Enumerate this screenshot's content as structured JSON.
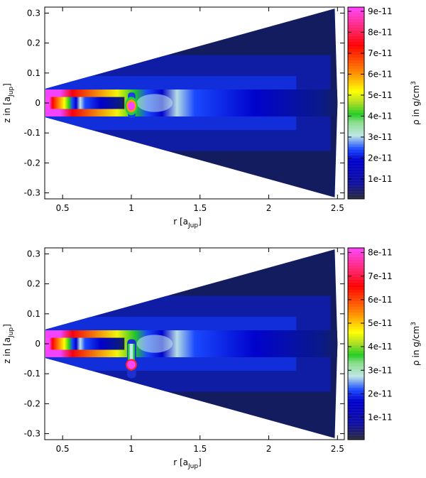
{
  "chart_data": [
    {
      "type": "heatmap",
      "xlabel": "r [a",
      "xlabel_sub": "Jup",
      "xlabel_close": "]",
      "ylabel": "z in [a",
      "ylabel_sub": "Jup",
      "ylabel_close": "]",
      "colorbar_label": "ρ in g/cm",
      "colorbar_label_sup": "3",
      "xlim": [
        0.37,
        2.55
      ],
      "ylim": [
        -0.32,
        0.32
      ],
      "x_ticks": [
        {
          "v": 0.5,
          "label": "0.5"
        },
        {
          "v": 1.0,
          "label": "1"
        },
        {
          "v": 1.5,
          "label": "1.5"
        },
        {
          "v": 2.0,
          "label": "2"
        },
        {
          "v": 2.5,
          "label": "2.5"
        }
      ],
      "y_ticks": [
        {
          "v": 0.3,
          "label": "0.3"
        },
        {
          "v": 0.2,
          "label": "0.2"
        },
        {
          "v": 0.1,
          "label": "0.1"
        },
        {
          "v": 0.0,
          "label": "0"
        },
        {
          "v": -0.1,
          "label": "-0.1"
        },
        {
          "v": -0.2,
          "label": "-0.2"
        },
        {
          "v": -0.3,
          "label": "-0.3"
        }
      ],
      "colorbar_range": [
        5e-13,
        9.2e-11
      ],
      "colorbar_ticks": [
        {
          "v": 1e-11,
          "label": "1e-11"
        },
        {
          "v": 2e-11,
          "label": "2e-11"
        },
        {
          "v": 3e-11,
          "label": "3e-11"
        },
        {
          "v": 4e-11,
          "label": "4e-11"
        },
        {
          "v": 5e-11,
          "label": "5e-11"
        },
        {
          "v": 6e-11,
          "label": "6e-11"
        },
        {
          "v": 7e-11,
          "label": "7e-11"
        },
        {
          "v": 8e-11,
          "label": "8e-11"
        },
        {
          "v": 9e-11,
          "label": "9e-11"
        }
      ],
      "wedge_opening_angle_rad": 0.127,
      "colormap": [
        "#2a2a3a",
        "#0000cc",
        "#1a4aff",
        "#bfe6e6",
        "#22cc22",
        "#ffff00",
        "#ff8800",
        "#ff0000",
        "#ff44ff"
      ],
      "planet": {
        "r": 1.0,
        "z": -0.01
      }
    },
    {
      "type": "heatmap",
      "xlabel": "r [a",
      "xlabel_sub": "Jup",
      "xlabel_close": "]",
      "ylabel": "z in [a",
      "ylabel_sub": "Jup",
      "ylabel_close": "]",
      "colorbar_label": "ρ in g/cm",
      "colorbar_label_sup": "3",
      "xlim": [
        0.37,
        2.55
      ],
      "ylim": [
        -0.32,
        0.32
      ],
      "x_ticks": [
        {
          "v": 0.5,
          "label": "0.5"
        },
        {
          "v": 1.0,
          "label": "1"
        },
        {
          "v": 1.5,
          "label": "1.5"
        },
        {
          "v": 2.0,
          "label": "2"
        },
        {
          "v": 2.5,
          "label": "2.5"
        }
      ],
      "y_ticks": [
        {
          "v": 0.3,
          "label": "0.3"
        },
        {
          "v": 0.2,
          "label": "0.2"
        },
        {
          "v": 0.1,
          "label": "0.1"
        },
        {
          "v": 0.0,
          "label": "0"
        },
        {
          "v": -0.1,
          "label": "-0.1"
        },
        {
          "v": -0.2,
          "label": "-0.2"
        },
        {
          "v": -0.3,
          "label": "-0.3"
        }
      ],
      "colorbar_range": [
        5e-13,
        8.2e-11
      ],
      "colorbar_ticks": [
        {
          "v": 1e-11,
          "label": "1e-11"
        },
        {
          "v": 2e-11,
          "label": "2e-11"
        },
        {
          "v": 3e-11,
          "label": "3e-11"
        },
        {
          "v": 4e-11,
          "label": "4e-11"
        },
        {
          "v": 5e-11,
          "label": "5e-11"
        },
        {
          "v": 6e-11,
          "label": "6e-11"
        },
        {
          "v": 7e-11,
          "label": "7e-11"
        },
        {
          "v": 8e-11,
          "label": "8e-11"
        }
      ],
      "wedge_opening_angle_rad": 0.127,
      "colormap": [
        "#2a2a3a",
        "#0000cc",
        "#1a4aff",
        "#bfe6e6",
        "#22cc22",
        "#ffff00",
        "#ff8800",
        "#ff0000",
        "#ff44ff"
      ],
      "planet": {
        "r": 1.0,
        "z": -0.07
      }
    }
  ]
}
